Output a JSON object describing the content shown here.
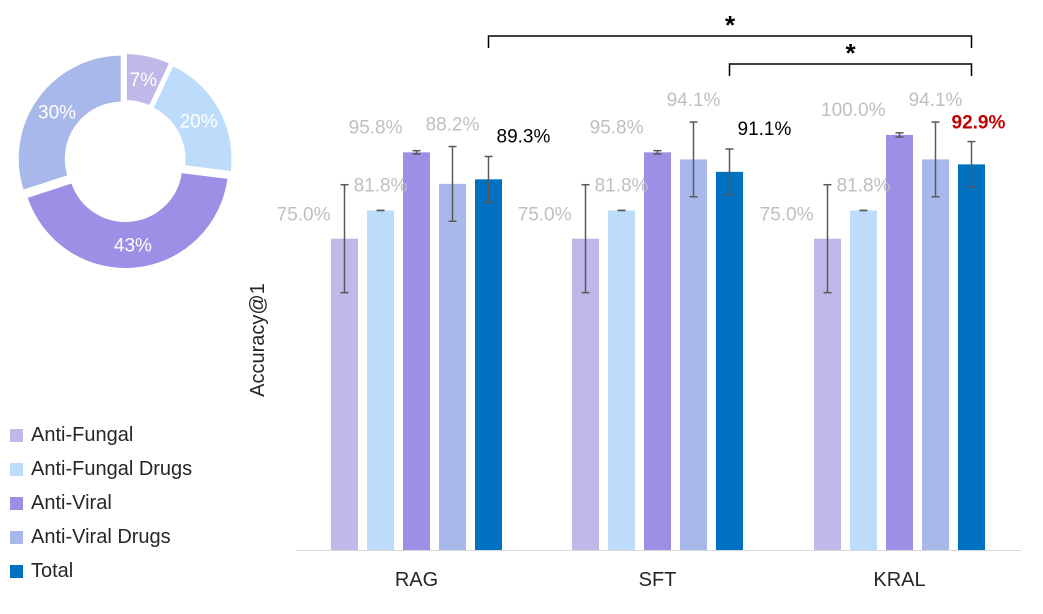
{
  "chart_data": [
    {
      "type": "pie",
      "variant": "donut",
      "slices": [
        {
          "label": "Anti-Fungal",
          "value": 7,
          "text": "7%",
          "color": "#BFB8E8"
        },
        {
          "label": "Anti-Fungal Drugs",
          "value": 20,
          "text": "20%",
          "color": "#BDDCFB"
        },
        {
          "label": "Anti-Viral",
          "value": 43,
          "text": "43%",
          "color": "#9B8FE6"
        },
        {
          "label": "Anti-Viral Drugs",
          "value": 30,
          "text": "30%",
          "color": "#A9B8EA"
        }
      ],
      "slice_order": "clockwise from top",
      "exploded": true
    },
    {
      "type": "bar",
      "ylabel": "Accuracy@1",
      "ylim": [
        0,
        106
      ],
      "grid": false,
      "categories": [
        "RAG",
        "SFT",
        "KRAL"
      ],
      "series": [
        {
          "name": "Anti-Fungal",
          "color": "#BFB8E8",
          "values": [
            75.0,
            75.0,
            75.0
          ],
          "labels": [
            "75.0%",
            "75.0%",
            "75.0%"
          ],
          "error": [
            13,
            13,
            13
          ]
        },
        {
          "name": "Anti-Fungal Drugs",
          "color": "#BDDCFB",
          "values": [
            81.8,
            81.8,
            81.8
          ],
          "labels": [
            "81.8%",
            "81.8%",
            "81.8%"
          ],
          "error": [
            0,
            0,
            0
          ]
        },
        {
          "name": "Anti-Viral",
          "color": "#9B8FE6",
          "values": [
            95.8,
            95.8,
            100.0
          ],
          "labels": [
            "95.8%",
            "95.8%",
            "100.0%"
          ],
          "error": [
            0.4,
            0.4,
            0.5
          ]
        },
        {
          "name": "Anti-Viral Drugs",
          "color": "#A9B8EA",
          "values": [
            88.2,
            94.1,
            94.1
          ],
          "labels": [
            "88.2%",
            "94.1%",
            "94.1%"
          ],
          "error": [
            9,
            9,
            9
          ]
        },
        {
          "name": "Total",
          "color": "#0070C0",
          "values": [
            89.3,
            91.1,
            92.9
          ],
          "labels": [
            "89.3%",
            "91.1%",
            "92.9%"
          ],
          "error": [
            5.5,
            5.5,
            5.5
          ]
        }
      ],
      "label_colors": {
        "default": "#BFBFBF",
        "total": "#000000",
        "highlight": "#C00000"
      },
      "highlighted_label": "92.9%",
      "significance": [
        {
          "from": "RAG",
          "to": "KRAL",
          "series": "Total",
          "mark": "*"
        },
        {
          "from": "SFT",
          "to": "KRAL",
          "series": "Total",
          "mark": "*"
        }
      ],
      "legend": {
        "position": "left",
        "entries": [
          "Anti-Fungal",
          "Anti-Fungal Drugs",
          "Anti-Viral",
          "Anti-Viral Drugs",
          "Total"
        ]
      }
    }
  ]
}
